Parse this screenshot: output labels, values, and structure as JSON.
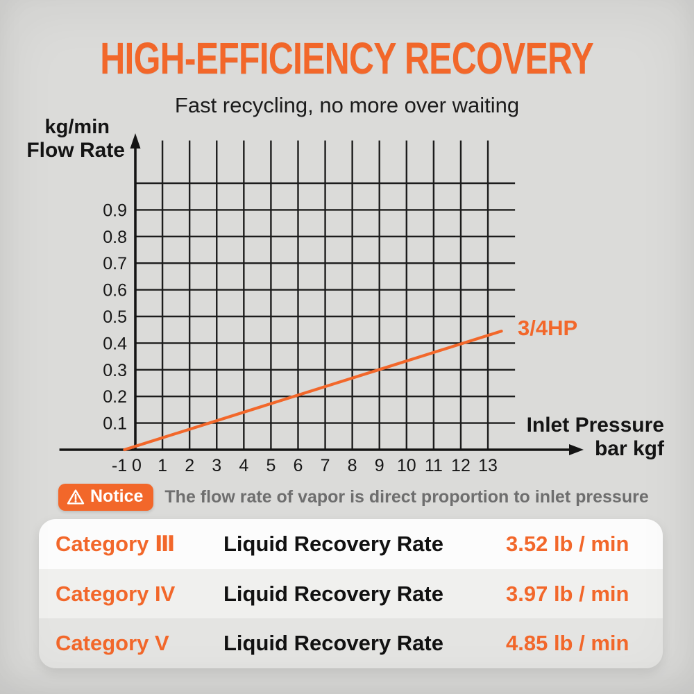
{
  "header": {
    "title": "HIGH-EFFICIENCY RECOVERY",
    "subtitle": "Fast recycling, no more over waiting"
  },
  "colors": {
    "accent": "#f2672a",
    "grid": "#1c1c1c",
    "axis": "#141414",
    "notice_text": "#6e6e6e"
  },
  "chart_data": {
    "type": "line",
    "title": "",
    "y_axis": {
      "unit": "kg/min",
      "label": "Flow Rate",
      "ticks": [
        0.1,
        0.2,
        0.3,
        0.4,
        0.5,
        0.6,
        0.7,
        0.8,
        0.9
      ]
    },
    "x_axis": {
      "label": "Inlet Pressure",
      "unit": "bar kgf",
      "ticks": [
        -1,
        0,
        1,
        2,
        3,
        4,
        5,
        6,
        7,
        8,
        9,
        10,
        11,
        12,
        13
      ]
    },
    "xlim": [
      -2.8,
      16.5
    ],
    "ylim": [
      0,
      1.18
    ],
    "grid": {
      "vertical_at_x": [
        1,
        2,
        3,
        4,
        5,
        6,
        7,
        8,
        9,
        10,
        11,
        12,
        13
      ],
      "vertical_top": 1.16,
      "horizontal_at_y": [
        0.1,
        0.2,
        0.3,
        0.4,
        0.5,
        0.6,
        0.7,
        0.8,
        0.9,
        1.0
      ],
      "horizontal_right": 14
    },
    "series": [
      {
        "name": "3/4HP",
        "color": "#f2672a",
        "points": [
          [
            -0.4,
            0.0
          ],
          [
            13.5,
            0.445
          ]
        ],
        "note": "flow rate rises linearly with inlet pressure, ~0.033 kg/min per bar"
      }
    ],
    "legend_position": "end-of-line"
  },
  "notice": {
    "badge": "Notice",
    "text": "The flow rate of vapor is direct proportion to inlet pressure"
  },
  "table": {
    "rows": [
      {
        "category": "Category Ⅲ",
        "label": "Liquid Recovery Rate",
        "value": "3.52 lb / min"
      },
      {
        "category": "Category IV",
        "label": "Liquid Recovery Rate",
        "value": "3.97 lb / min"
      },
      {
        "category": "Category V",
        "label": "Liquid Recovery Rate",
        "value": "4.85 lb / min"
      }
    ]
  }
}
